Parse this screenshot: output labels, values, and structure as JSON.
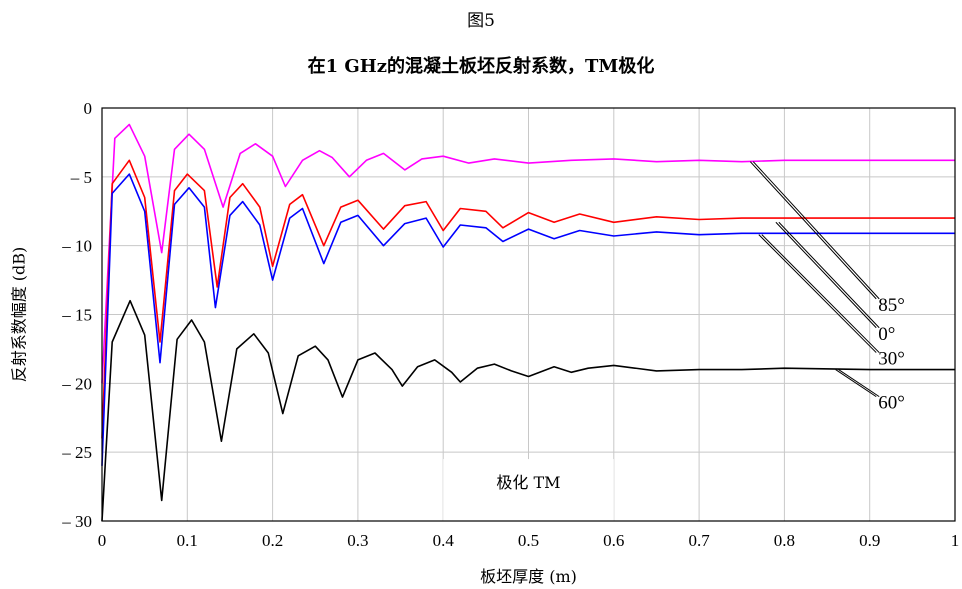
{
  "figure_label": "图5",
  "chart_data": {
    "type": "line",
    "title": "在1 GHz的混凝土板坯反射系数，TM极化",
    "xlabel": "板坯厚度 (m)",
    "ylabel": "反射系数幅度 (dB)",
    "xlim": [
      0,
      1
    ],
    "ylim": [
      -30,
      0
    ],
    "x_ticks": [
      "0",
      "0.1",
      "0.2",
      "0.3",
      "0.4",
      "0.5",
      "0.6",
      "0.7",
      "0.8",
      "0.9",
      "1"
    ],
    "y_ticks": [
      "0",
      "– 5",
      "– 10",
      "– 15",
      "– 20",
      "– 25",
      "– 30"
    ],
    "grid": true,
    "annotation": "极化 TM",
    "series": [
      {
        "name": "85°",
        "color": "#ff00ff",
        "x": [
          0,
          0.015,
          0.032,
          0.05,
          0.07,
          0.085,
          0.102,
          0.12,
          0.142,
          0.162,
          0.18,
          0.2,
          0.215,
          0.235,
          0.255,
          0.27,
          0.29,
          0.31,
          0.33,
          0.355,
          0.375,
          0.4,
          0.43,
          0.46,
          0.5,
          0.55,
          0.6,
          0.65,
          0.7,
          0.75,
          0.8,
          0.9,
          1.0
        ],
        "values": [
          -20,
          -2.2,
          -1.2,
          -3.5,
          -10.5,
          -3.0,
          -1.9,
          -3.0,
          -7.2,
          -3.3,
          -2.6,
          -3.5,
          -5.7,
          -3.8,
          -3.1,
          -3.6,
          -5.0,
          -3.8,
          -3.3,
          -4.5,
          -3.7,
          -3.5,
          -4.0,
          -3.7,
          -4.0,
          -3.8,
          -3.7,
          -3.9,
          -3.8,
          -3.9,
          -3.8,
          -3.8,
          -3.8
        ]
      },
      {
        "name": "0°",
        "color": "#ff0000",
        "x": [
          0,
          0.012,
          0.032,
          0.05,
          0.068,
          0.085,
          0.1,
          0.12,
          0.135,
          0.15,
          0.165,
          0.185,
          0.2,
          0.22,
          0.235,
          0.26,
          0.28,
          0.3,
          0.33,
          0.355,
          0.38,
          0.4,
          0.42,
          0.45,
          0.47,
          0.5,
          0.53,
          0.56,
          0.6,
          0.65,
          0.7,
          0.75,
          0.8,
          0.9,
          1.0
        ],
        "values": [
          -24,
          -5.5,
          -3.8,
          -6.5,
          -17.0,
          -6.0,
          -4.8,
          -6.0,
          -13.0,
          -6.5,
          -5.5,
          -7.2,
          -11.5,
          -7.0,
          -6.3,
          -10.0,
          -7.2,
          -6.7,
          -8.8,
          -7.1,
          -6.8,
          -8.9,
          -7.3,
          -7.5,
          -8.7,
          -7.6,
          -8.3,
          -7.7,
          -8.3,
          -7.9,
          -8.1,
          -8.0,
          -8.0,
          -8.0,
          -8.0
        ]
      },
      {
        "name": "30°",
        "color": "#0000ff",
        "x": [
          0,
          0.012,
          0.032,
          0.05,
          0.068,
          0.085,
          0.102,
          0.12,
          0.133,
          0.15,
          0.165,
          0.185,
          0.2,
          0.22,
          0.235,
          0.26,
          0.28,
          0.3,
          0.33,
          0.355,
          0.38,
          0.4,
          0.42,
          0.45,
          0.47,
          0.5,
          0.53,
          0.56,
          0.6,
          0.65,
          0.7,
          0.75,
          0.8,
          0.9,
          1.0
        ],
        "values": [
          -26,
          -6.2,
          -4.8,
          -7.5,
          -18.5,
          -7.0,
          -5.8,
          -7.2,
          -14.5,
          -7.8,
          -6.8,
          -8.5,
          -12.5,
          -8.0,
          -7.3,
          -11.3,
          -8.3,
          -7.8,
          -10.0,
          -8.4,
          -8.0,
          -10.1,
          -8.5,
          -8.7,
          -9.7,
          -8.8,
          -9.5,
          -8.9,
          -9.3,
          -9.0,
          -9.2,
          -9.1,
          -9.1,
          -9.1,
          -9.1
        ]
      },
      {
        "name": "60°",
        "color": "#000000",
        "x": [
          0,
          0.012,
          0.033,
          0.05,
          0.07,
          0.088,
          0.105,
          0.12,
          0.14,
          0.158,
          0.178,
          0.195,
          0.212,
          0.23,
          0.25,
          0.265,
          0.282,
          0.3,
          0.32,
          0.34,
          0.352,
          0.37,
          0.39,
          0.41,
          0.42,
          0.44,
          0.46,
          0.48,
          0.5,
          0.53,
          0.55,
          0.57,
          0.6,
          0.65,
          0.7,
          0.75,
          0.8,
          0.9,
          1.0
        ],
        "values": [
          -30,
          -17.0,
          -14.0,
          -16.5,
          -28.5,
          -16.8,
          -15.4,
          -17.0,
          -24.2,
          -17.5,
          -16.4,
          -17.8,
          -22.2,
          -18.0,
          -17.3,
          -18.3,
          -21.0,
          -18.3,
          -17.8,
          -19.0,
          -20.2,
          -18.8,
          -18.3,
          -19.2,
          -19.9,
          -18.9,
          -18.6,
          -19.1,
          -19.5,
          -18.8,
          -19.2,
          -18.9,
          -18.7,
          -19.1,
          -19.0,
          -19.0,
          -18.9,
          -19.0,
          -19.0
        ]
      }
    ],
    "legend": [
      {
        "label": "85°",
        "series": "85°"
      },
      {
        "label": "0°",
        "series": "0°"
      },
      {
        "label": "30°",
        "series": "30°"
      },
      {
        "label": "60°",
        "series": "60°"
      }
    ]
  }
}
